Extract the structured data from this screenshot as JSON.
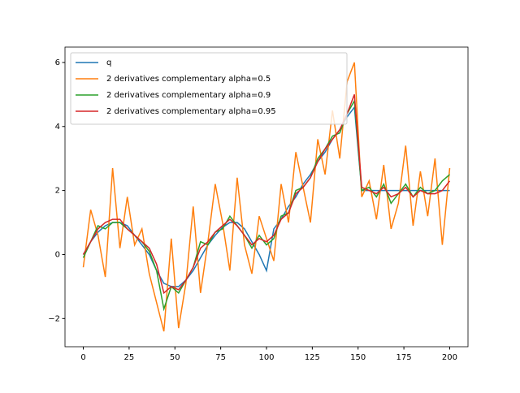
{
  "chart_data": {
    "type": "line",
    "x": [
      0,
      4,
      8,
      12,
      16,
      20,
      24,
      28,
      32,
      36,
      40,
      44,
      48,
      52,
      56,
      60,
      64,
      68,
      72,
      76,
      80,
      84,
      88,
      92,
      96,
      100,
      104,
      108,
      112,
      116,
      120,
      124,
      128,
      132,
      136,
      140,
      144,
      148,
      152,
      156,
      160,
      164,
      168,
      172,
      176,
      180,
      184,
      188,
      192,
      196,
      200
    ],
    "series": [
      {
        "name": "q",
        "color": "#1f77b4",
        "values": [
          0,
          0.4,
          0.7,
          0.9,
          1.0,
          1.0,
          0.9,
          0.6,
          0.3,
          0,
          -0.5,
          -0.9,
          -1.0,
          -1.0,
          -0.8,
          -0.5,
          -0.1,
          0.3,
          0.6,
          0.85,
          1.0,
          1.0,
          0.8,
          0.4,
          0,
          -0.5,
          0.8,
          1.1,
          1.5,
          1.8,
          2.2,
          2.5,
          2.9,
          3.2,
          3.6,
          3.9,
          4.3,
          4.6,
          2,
          2,
          2,
          2,
          2,
          2,
          2,
          2,
          2,
          2,
          2,
          2,
          2
        ]
      },
      {
        "name": "2 derivatives complementary alpha=0.5",
        "color": "#ff7f0e",
        "values": [
          -0.4,
          1.4,
          0.6,
          -0.7,
          2.7,
          0.2,
          1.8,
          0.3,
          0.8,
          -0.6,
          -1.5,
          -2.4,
          0.5,
          -2.3,
          -0.9,
          1.5,
          -1.2,
          0.4,
          2.2,
          1.0,
          -0.5,
          2.4,
          0.3,
          -0.6,
          1.2,
          0.5,
          -0.2,
          2.2,
          1.0,
          3.2,
          2.1,
          1.0,
          3.6,
          2.5,
          4.5,
          3.0,
          5.4,
          6.0,
          1.8,
          2.3,
          1.1,
          2.8,
          0.8,
          1.6,
          3.4,
          0.9,
          2.6,
          1.2,
          3.0,
          0.3,
          2.7
        ]
      },
      {
        "name": "2 derivatives complementary alpha=0.9",
        "color": "#2ca02c",
        "values": [
          -0.1,
          0.4,
          0.9,
          0.8,
          1.0,
          1.0,
          0.8,
          0.6,
          0.4,
          0.1,
          -0.5,
          -1.7,
          -1.0,
          -1.2,
          -0.8,
          -0.4,
          0.4,
          0.3,
          0.7,
          0.8,
          1.2,
          0.9,
          0.6,
          0.2,
          0.6,
          0.3,
          0.5,
          1.2,
          1.3,
          2.0,
          2.1,
          2.4,
          3.0,
          3.3,
          3.7,
          3.8,
          4.4,
          4.8,
          2.0,
          2.1,
          1.8,
          2.2,
          1.6,
          1.9,
          2.2,
          1.8,
          2.1,
          1.9,
          2.0,
          2.3,
          2.5
        ]
      },
      {
        "name": "2 derivatives complementary alpha=0.95",
        "color": "#d62728",
        "values": [
          0,
          0.4,
          0.8,
          1.0,
          1.1,
          1.1,
          0.8,
          0.6,
          0.4,
          0.2,
          -0.3,
          -1.2,
          -1.0,
          -1.1,
          -0.8,
          -0.4,
          0.2,
          0.4,
          0.7,
          0.9,
          1.1,
          0.9,
          0.6,
          0.3,
          0.5,
          0.4,
          0.6,
          1.1,
          1.3,
          1.9,
          2.1,
          2.4,
          2.9,
          3.3,
          3.6,
          3.9,
          4.4,
          5.0,
          2.1,
          2.0,
          1.9,
          2.1,
          1.8,
          1.9,
          2.1,
          1.8,
          2.0,
          1.9,
          1.9,
          2.0,
          2.3
        ]
      }
    ],
    "xlim": [
      -10,
      210
    ],
    "ylim": [
      -2.88,
      6.48
    ],
    "xticks": [
      0,
      25,
      50,
      75,
      100,
      125,
      150,
      175,
      200
    ],
    "yticks": [
      {
        "value": -2,
        "label": "−2"
      },
      0,
      2,
      4,
      6
    ],
    "legend": "upper left"
  }
}
